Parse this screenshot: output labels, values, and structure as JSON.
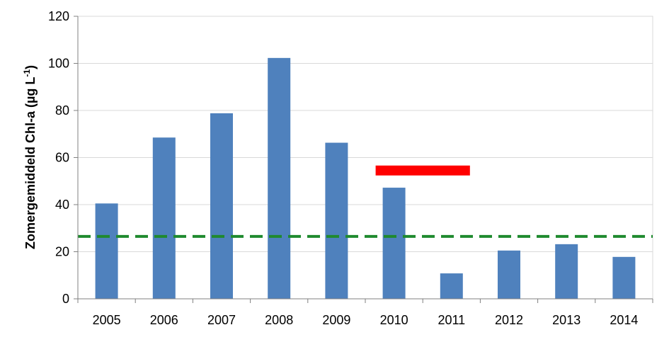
{
  "chart_data": {
    "type": "bar",
    "categories": [
      "2005",
      "2006",
      "2007",
      "2008",
      "2009",
      "2010",
      "2011",
      "2012",
      "2013",
      "2014"
    ],
    "values": [
      40.5,
      68.5,
      78.8,
      102.3,
      66.3,
      47.2,
      10.8,
      20.5,
      23.2,
      17.8
    ],
    "ylabel": "Zomergemiddeld Chl-a (µg L",
    "ylabel_unit_sup": "-1",
    "ylabel_close": ")",
    "ylim": [
      0,
      120
    ],
    "yticks": [
      0,
      20,
      40,
      60,
      80,
      100,
      120
    ],
    "grid": true,
    "legend": "none",
    "reference_lines": [
      {
        "kind": "dashed-horizontal",
        "y": 26.5,
        "color": "#1f8a2e"
      }
    ],
    "segments": [
      {
        "kind": "horizontal-segment",
        "y": 54.5,
        "x_from": "2010",
        "x_to": "2011",
        "color": "#ff0000"
      }
    ],
    "bar_color": "#4f81bd"
  }
}
